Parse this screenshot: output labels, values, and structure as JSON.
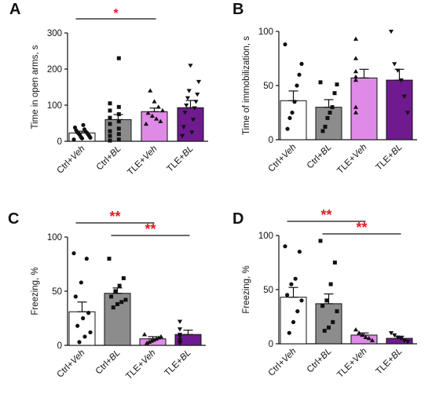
{
  "colors": {
    "ctrl_veh": "#ffffff",
    "ctrl_bl": "#8c8c8c",
    "tle_veh": "#e08ae8",
    "tle_bl": "#6f1a8e",
    "significance": "#e31b23",
    "axis": "#111111"
  },
  "chart_data": [
    {
      "panel": "A",
      "type": "bar",
      "ylabel": "Time in open arms, s",
      "ylim": [
        0,
        300
      ],
      "yticks": [
        "0",
        "100",
        "200",
        "300"
      ],
      "categories": [
        "Ctrl+Veh",
        "Ctrl+BL",
        "TLE+Veh",
        "TLE+BL"
      ],
      "category_labels": [
        {
          "main": "Ctrl+",
          "italic": "Veh"
        },
        {
          "main": "Ctrl+",
          "italic": "BL"
        },
        {
          "main": "TLE+",
          "italic": "Veh"
        },
        {
          "main": "TLE+",
          "italic": "BL"
        }
      ],
      "values": [
        23,
        60,
        82,
        93
      ],
      "errors": [
        5,
        14,
        10,
        20
      ],
      "points": [
        [
          5,
          8,
          10,
          12,
          15,
          18,
          20,
          22,
          24,
          25,
          27,
          30,
          33,
          38,
          45
        ],
        [
          2,
          5,
          15,
          20,
          28,
          35,
          48,
          55,
          65,
          75,
          85,
          95,
          105,
          230
        ],
        [
          48,
          55,
          62,
          70,
          78,
          85,
          95,
          110,
          140
        ],
        [
          15,
          25,
          40,
          60,
          80,
          92,
          100,
          110,
          120,
          130,
          140,
          165,
          210
        ]
      ],
      "markers": [
        "circle",
        "square",
        "triangle",
        "triangle-down"
      ],
      "significance": [
        {
          "from": 0,
          "to": 2,
          "label": "*"
        }
      ]
    },
    {
      "panel": "B",
      "type": "bar",
      "ylabel": "Time of immobilization, s",
      "ylim": [
        0,
        100
      ],
      "yticks": [
        "0",
        "50",
        "100"
      ],
      "categories": [
        "Ctrl+Veh",
        "Ctrl+BL",
        "TLE+Veh",
        "TLE+BL"
      ],
      "category_labels": [
        {
          "main": "Ctrl+",
          "italic": "Veh"
        },
        {
          "main": "Ctrl+",
          "italic": "BL"
        },
        {
          "main": "TLE+",
          "italic": "Veh"
        },
        {
          "main": "TLE+",
          "italic": "BL"
        }
      ],
      "values": [
        36,
        30,
        57,
        55
      ],
      "errors": [
        9,
        7,
        8,
        10
      ],
      "points": [
        [
          88,
          70,
          60,
          50,
          35,
          25,
          20,
          10
        ],
        [
          53,
          51,
          43,
          30,
          25,
          20,
          12,
          8
        ],
        [
          93,
          75,
          63,
          58,
          55,
          30,
          25
        ],
        [
          100,
          70,
          64,
          55,
          40,
          25
        ]
      ],
      "markers": [
        "circle",
        "square",
        "triangle",
        "triangle-down"
      ],
      "significance": []
    },
    {
      "panel": "C",
      "type": "bar",
      "ylabel": "Freezing, %",
      "ylim": [
        0,
        100
      ],
      "yticks": [
        "0",
        "50",
        "100"
      ],
      "categories": [
        "Ctrl+Veh",
        "Ctrl+BL",
        "TLE+Veh",
        "TLE+BL"
      ],
      "category_labels": [
        {
          "main": "Ctrl+",
          "italic": "Veh"
        },
        {
          "main": "Ctrl+",
          "italic": "BL"
        },
        {
          "main": "TLE+",
          "italic": "Veh"
        },
        {
          "main": "TLE+",
          "italic": "BL"
        }
      ],
      "values": [
        31,
        48,
        6,
        10
      ],
      "errors": [
        9,
        5,
        2,
        4
      ],
      "points": [
        [
          85,
          80,
          58,
          45,
          30,
          25,
          18,
          12,
          8,
          3
        ],
        [
          80,
          62,
          55,
          50,
          45,
          42,
          40,
          38,
          35
        ],
        [
          10,
          8,
          7,
          6,
          5,
          4,
          3,
          2
        ],
        [
          22,
          15,
          10,
          8,
          5,
          3,
          2
        ]
      ],
      "markers": [
        "circle",
        "square",
        "triangle",
        "triangle-down"
      ],
      "significance": [
        {
          "from": 0,
          "to": 2,
          "label": "**"
        },
        {
          "from": 1,
          "to": 3,
          "label": "**"
        }
      ]
    },
    {
      "panel": "D",
      "type": "bar",
      "ylabel": "Freezing, %",
      "ylim": [
        0,
        100
      ],
      "yticks": [
        "0",
        "50",
        "100"
      ],
      "categories": [
        "Ctrl+Veh",
        "Ctrl+BL",
        "TLE+Veh",
        "TLE+BL"
      ],
      "category_labels": [
        {
          "main": "Ctrl+",
          "italic": "Veh"
        },
        {
          "main": "Ctrl+",
          "italic": "BL"
        },
        {
          "main": "TLE+",
          "italic": "Veh"
        },
        {
          "main": "TLE+",
          "italic": "BL"
        }
      ],
      "values": [
        43,
        37,
        8,
        5
      ],
      "errors": [
        9,
        9,
        2,
        2
      ],
      "points": [
        [
          90,
          85,
          60,
          55,
          45,
          40,
          30,
          20,
          10
        ],
        [
          95,
          75,
          55,
          40,
          35,
          30,
          20,
          15,
          12
        ],
        [
          13,
          10,
          8,
          6,
          5,
          3
        ],
        [
          10,
          8,
          6,
          5,
          3,
          2
        ]
      ],
      "markers": [
        "circle",
        "square",
        "triangle",
        "triangle-down"
      ],
      "significance": [
        {
          "from": 0,
          "to": 2,
          "label": "**"
        },
        {
          "from": 1,
          "to": 3,
          "label": "**"
        }
      ]
    }
  ]
}
